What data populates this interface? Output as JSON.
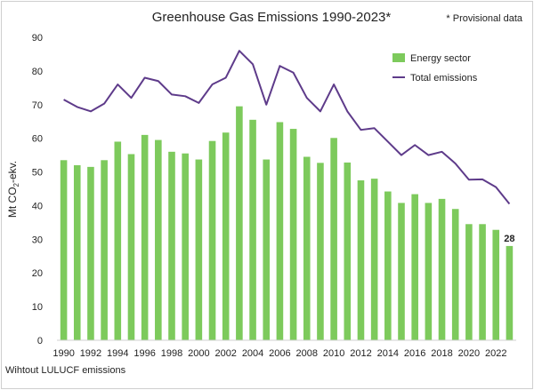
{
  "chart_data": {
    "type": "bar",
    "title": "Greenhouse Gas Emissions 1990-2023*",
    "note": "* Provisional data",
    "footnote": "Wihtout LULUCF emissions",
    "ylabel_main": "Mt CO",
    "ylabel_sub": "2",
    "ylabel_end": "-ekv.",
    "ylim": [
      0,
      90
    ],
    "yticks": [
      0,
      10,
      20,
      30,
      40,
      50,
      60,
      70,
      80,
      90
    ],
    "xticks": [
      "1990",
      "1992",
      "1994",
      "1996",
      "1998",
      "2000",
      "2002",
      "2004",
      "2006",
      "2008",
      "2010",
      "2012",
      "2014",
      "2016",
      "2018",
      "2020",
      "2022"
    ],
    "categories": [
      "1990",
      "1991",
      "1992",
      "1993",
      "1994",
      "1995",
      "1996",
      "1997",
      "1998",
      "1999",
      "2000",
      "2001",
      "2002",
      "2003",
      "2004",
      "2005",
      "2006",
      "2007",
      "2008",
      "2009",
      "2010",
      "2011",
      "2012",
      "2013",
      "2014",
      "2015",
      "2016",
      "2017",
      "2018",
      "2019",
      "2020",
      "2021",
      "2022",
      "2023"
    ],
    "legend_position": "top-right",
    "grid": false,
    "series": [
      {
        "name": "Energy sector",
        "type": "bar",
        "color": "#7dca5c",
        "values": [
          53.5,
          52,
          51.5,
          53.5,
          59,
          55.3,
          61,
          59.5,
          56,
          55.5,
          53.7,
          59.2,
          61.7,
          69.5,
          65.5,
          53.7,
          64.8,
          62.8,
          54.5,
          52.7,
          60.1,
          52.8,
          47.5,
          48,
          44.2,
          40.8,
          43.4,
          40.8,
          42,
          39,
          34.5,
          34.5,
          32.8,
          28
        ]
      },
      {
        "name": "Total emissions",
        "type": "line",
        "color": "#5e3b8a",
        "values": [
          71.5,
          69.3,
          68,
          70.3,
          76,
          72,
          78,
          77,
          73,
          72.5,
          70.5,
          76,
          78,
          86,
          82,
          70,
          81.5,
          79.5,
          72,
          68,
          76,
          68,
          62.5,
          63,
          59,
          55,
          58,
          55,
          56,
          52.5,
          47.7,
          47.8,
          45.5,
          40.5
        ]
      }
    ],
    "annotations": [
      {
        "category": "2023",
        "text": "28"
      }
    ]
  }
}
